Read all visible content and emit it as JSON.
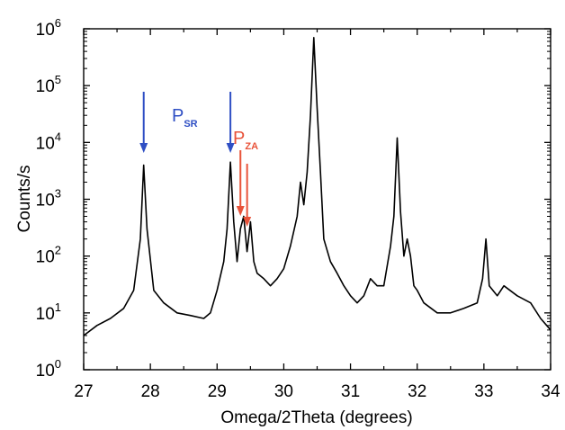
{
  "chart_data": {
    "type": "line",
    "title": "",
    "xlabel": "Omega/2Theta (degrees)",
    "ylabel": "Counts/s",
    "xlim": [
      27,
      34
    ],
    "ylim": [
      1,
      1000000
    ],
    "yscale": "log",
    "grid": false,
    "legend": "none",
    "x_ticks": [
      "27",
      "28",
      "29",
      "30",
      "31",
      "32",
      "33",
      "34"
    ],
    "y_ticks": [
      {
        "base": "10",
        "exp": "0"
      },
      {
        "base": "10",
        "exp": "1"
      },
      {
        "base": "10",
        "exp": "2"
      },
      {
        "base": "10",
        "exp": "3"
      },
      {
        "base": "10",
        "exp": "4"
      },
      {
        "base": "10",
        "exp": "5"
      },
      {
        "base": "10",
        "exp": "6"
      }
    ],
    "series": [
      {
        "color": "#000000",
        "x": [
          27.0,
          27.2,
          27.4,
          27.6,
          27.75,
          27.85,
          27.9,
          27.95,
          28.05,
          28.2,
          28.4,
          28.6,
          28.8,
          28.9,
          29.0,
          29.1,
          29.15,
          29.2,
          29.25,
          29.3,
          29.35,
          29.4,
          29.45,
          29.5,
          29.55,
          29.6,
          29.7,
          29.8,
          29.9,
          30.0,
          30.1,
          30.2,
          30.25,
          30.3,
          30.35,
          30.4,
          30.45,
          30.5,
          30.55,
          30.6,
          30.7,
          30.8,
          30.9,
          31.0,
          31.1,
          31.2,
          31.3,
          31.4,
          31.5,
          31.6,
          31.65,
          31.7,
          31.75,
          31.8,
          31.85,
          31.9,
          31.95,
          32.0,
          32.1,
          32.3,
          32.5,
          32.7,
          32.9,
          32.98,
          33.03,
          33.08,
          33.2,
          33.3,
          33.5,
          33.7,
          33.85,
          34.0
        ],
        "y": [
          4,
          6,
          8,
          12,
          25,
          200,
          4000,
          300,
          25,
          15,
          10,
          9,
          8,
          10,
          25,
          80,
          300,
          4500,
          400,
          80,
          300,
          500,
          120,
          400,
          80,
          50,
          40,
          30,
          40,
          60,
          150,
          500,
          2000,
          800,
          3000,
          30000,
          700000,
          40000,
          3000,
          200,
          80,
          50,
          30,
          20,
          15,
          20,
          40,
          30,
          30,
          150,
          500,
          12000,
          600,
          100,
          200,
          100,
          30,
          25,
          15,
          10,
          10,
          12,
          15,
          40,
          200,
          30,
          20,
          30,
          20,
          15,
          8,
          5
        ]
      }
    ],
    "annotations": [
      {
        "label": "P",
        "sub": "SR",
        "color": "#2f4fc4",
        "arrows_at_x": [
          27.9,
          29.2
        ]
      },
      {
        "label": "P",
        "sub": "ZA",
        "color": "#e8533a",
        "arrows_at_x": [
          29.35,
          29.45
        ]
      }
    ]
  }
}
